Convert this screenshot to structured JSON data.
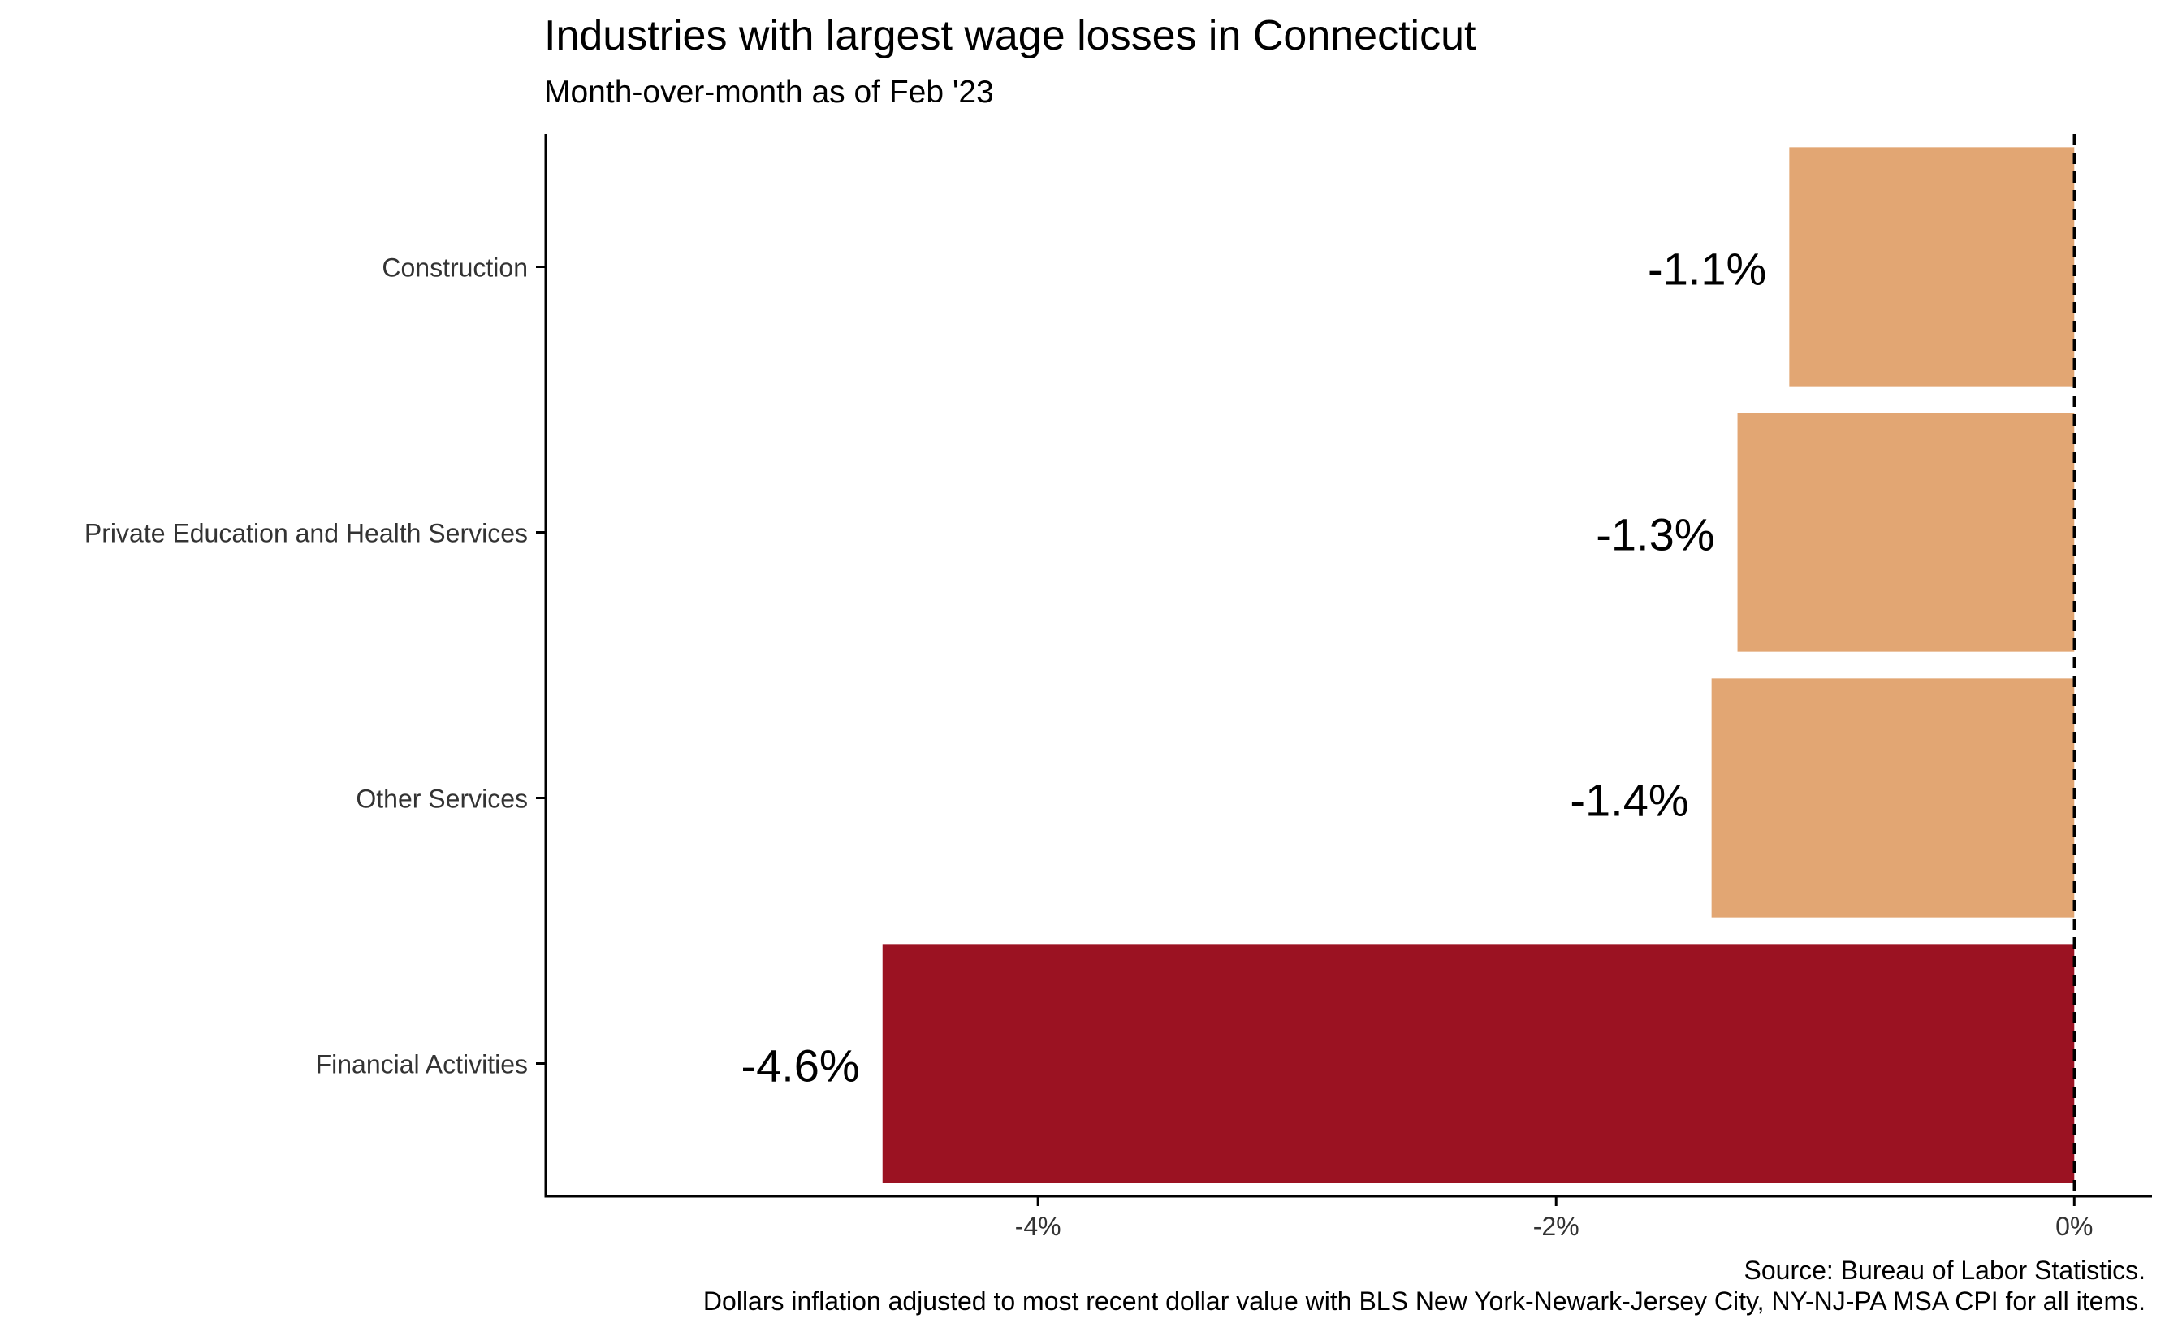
{
  "title": "Industries with largest wage losses in Connecticut",
  "subtitle": "Month-over-month as of Feb '23",
  "caption": {
    "source": "Source: Bureau of Labor Statistics.",
    "note": "Dollars inflation adjusted to most recent dollar value with BLS New York-Newark-Jersey City, NY-NJ-PA MSA CPI for all items."
  },
  "colors": {
    "highlight": "#9B1222",
    "default": "#E2A673",
    "axis": "#000000",
    "tick_text": "#333333"
  },
  "chart_data": {
    "type": "bar",
    "orientation": "horizontal",
    "title": "Industries with largest wage losses in Connecticut",
    "subtitle": "Month-over-month as of Feb '23",
    "categories": [
      "Construction",
      "Private Education and Health Services",
      "Other Services",
      "Financial Activities"
    ],
    "values": [
      -1.1,
      -1.3,
      -1.4,
      -4.6
    ],
    "labels": [
      "-1.1%",
      "-1.3%",
      "-1.4%",
      "-4.6%"
    ],
    "highlight": [
      false,
      false,
      false,
      true
    ],
    "xlim": [
      -5.9,
      0.3
    ],
    "xticks": [
      -4,
      -2,
      0
    ],
    "xtick_labels": [
      "-4%",
      "-2%",
      "0%"
    ],
    "reference_line": 0,
    "grid": false,
    "legend": "none",
    "xlabel": "",
    "ylabel": ""
  }
}
